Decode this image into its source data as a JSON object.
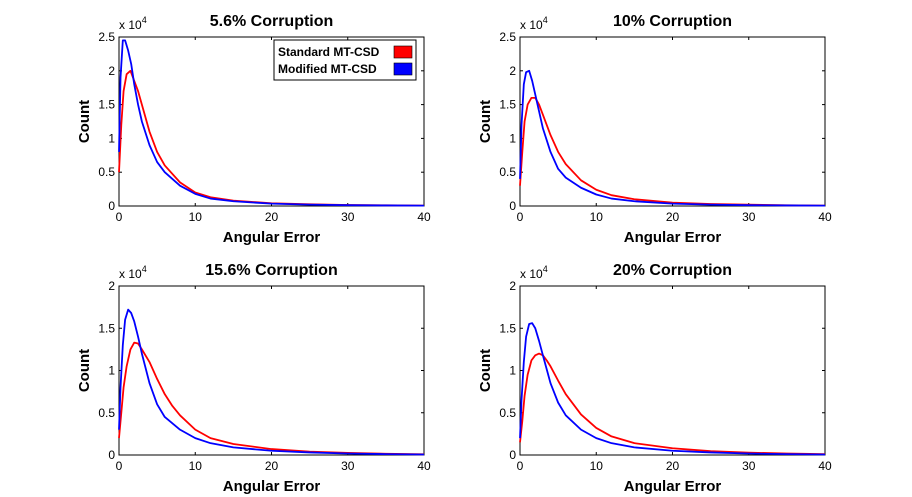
{
  "chart_data": [
    {
      "type": "line",
      "title": "5.6% Corruption",
      "xlabel": "Angular Error",
      "ylabel": "Count",
      "xlim": [
        0,
        40
      ],
      "ylim": [
        0,
        2.5
      ],
      "y_multiplier": "x 10",
      "y_multiplier_exp": "4",
      "xticks": [
        "0",
        "10",
        "20",
        "30",
        "40"
      ],
      "yticks": [
        "0",
        "0.5",
        "1",
        "1.5",
        "2",
        "2.5"
      ],
      "legend": {
        "position": "top-right"
      },
      "series": [
        {
          "name": "Standard MT-CSD",
          "color": "#ff0000",
          "x": [
            0,
            0.3,
            0.6,
            1.0,
            1.5,
            2.0,
            2.5,
            3.0,
            4.0,
            5.0,
            6.0,
            8.0,
            10.0,
            12.0,
            15.0,
            20.0,
            25.0,
            30.0,
            35.0,
            40.0
          ],
          "y": [
            0.5,
            1.2,
            1.7,
            1.95,
            2.0,
            1.85,
            1.7,
            1.5,
            1.1,
            0.8,
            0.6,
            0.35,
            0.2,
            0.13,
            0.08,
            0.04,
            0.025,
            0.015,
            0.01,
            0.005
          ]
        },
        {
          "name": "Modified MT-CSD",
          "color": "#0000ff",
          "x": [
            0,
            0.2,
            0.5,
            0.8,
            1.2,
            1.6,
            2.0,
            2.5,
            3.0,
            4.0,
            5.0,
            6.0,
            8.0,
            10.0,
            12.0,
            15.0,
            20.0,
            25.0,
            30.0,
            35.0,
            40.0
          ],
          "y": [
            0.8,
            1.9,
            2.45,
            2.45,
            2.3,
            2.1,
            1.8,
            1.5,
            1.25,
            0.9,
            0.65,
            0.5,
            0.3,
            0.18,
            0.11,
            0.07,
            0.035,
            0.02,
            0.012,
            0.008,
            0.005
          ]
        }
      ]
    },
    {
      "type": "line",
      "title": "10% Corruption",
      "xlabel": "Angular Error",
      "ylabel": "Count",
      "xlim": [
        0,
        40
      ],
      "ylim": [
        0,
        2.5
      ],
      "y_multiplier": "x 10",
      "y_multiplier_exp": "4",
      "xticks": [
        "0",
        "10",
        "20",
        "30",
        "40"
      ],
      "yticks": [
        "0",
        "0.5",
        "1",
        "1.5",
        "2",
        "2.5"
      ],
      "series": [
        {
          "name": "Standard MT-CSD",
          "color": "#ff0000",
          "x": [
            0,
            0.3,
            0.6,
            1.0,
            1.5,
            2.0,
            2.5,
            3.0,
            4.0,
            5.0,
            6.0,
            8.0,
            10.0,
            12.0,
            15.0,
            20.0,
            25.0,
            30.0,
            35.0,
            40.0
          ],
          "y": [
            0.3,
            0.8,
            1.25,
            1.5,
            1.6,
            1.6,
            1.5,
            1.35,
            1.05,
            0.8,
            0.62,
            0.38,
            0.24,
            0.16,
            0.1,
            0.05,
            0.03,
            0.02,
            0.01,
            0.005
          ]
        },
        {
          "name": "Modified MT-CSD",
          "color": "#0000ff",
          "x": [
            0,
            0.2,
            0.5,
            0.8,
            1.2,
            1.6,
            2.0,
            2.5,
            3.0,
            4.0,
            5.0,
            6.0,
            8.0,
            10.0,
            12.0,
            15.0,
            20.0,
            25.0,
            30.0,
            35.0,
            40.0
          ],
          "y": [
            0.4,
            1.2,
            1.8,
            1.98,
            2.0,
            1.85,
            1.65,
            1.4,
            1.15,
            0.8,
            0.55,
            0.42,
            0.27,
            0.17,
            0.11,
            0.07,
            0.035,
            0.02,
            0.012,
            0.008,
            0.005
          ]
        }
      ]
    },
    {
      "type": "line",
      "title": "15.6% Corruption",
      "xlabel": "Angular Error",
      "ylabel": "Count",
      "xlim": [
        0,
        40
      ],
      "ylim": [
        0,
        2
      ],
      "y_multiplier": "x 10",
      "y_multiplier_exp": "4",
      "xticks": [
        "0",
        "10",
        "20",
        "30",
        "40"
      ],
      "yticks": [
        "0",
        "0.5",
        "1",
        "1.5",
        "2"
      ],
      "series": [
        {
          "name": "Standard MT-CSD",
          "color": "#ff0000",
          "x": [
            0,
            0.3,
            0.6,
            1.0,
            1.5,
            2.0,
            2.5,
            3.0,
            4.0,
            5.0,
            6.0,
            7.0,
            8.0,
            10.0,
            12.0,
            15.0,
            20.0,
            25.0,
            30.0,
            35.0,
            40.0
          ],
          "y": [
            0.2,
            0.5,
            0.8,
            1.05,
            1.25,
            1.33,
            1.32,
            1.25,
            1.1,
            0.9,
            0.72,
            0.58,
            0.47,
            0.3,
            0.2,
            0.13,
            0.07,
            0.04,
            0.025,
            0.015,
            0.008
          ]
        },
        {
          "name": "Modified MT-CSD",
          "color": "#0000ff",
          "x": [
            0,
            0.2,
            0.5,
            0.8,
            1.2,
            1.6,
            2.0,
            2.5,
            3.0,
            4.0,
            5.0,
            6.0,
            8.0,
            10.0,
            12.0,
            15.0,
            20.0,
            25.0,
            30.0,
            35.0,
            40.0
          ],
          "y": [
            0.3,
            0.8,
            1.3,
            1.6,
            1.72,
            1.68,
            1.58,
            1.4,
            1.2,
            0.85,
            0.6,
            0.45,
            0.3,
            0.2,
            0.14,
            0.09,
            0.05,
            0.03,
            0.018,
            0.01,
            0.006
          ]
        }
      ]
    },
    {
      "type": "line",
      "title": "20% Corruption",
      "xlabel": "Angular Error",
      "ylabel": "Count",
      "xlim": [
        0,
        40
      ],
      "ylim": [
        0,
        2
      ],
      "y_multiplier": "x 10",
      "y_multiplier_exp": "4",
      "xticks": [
        "0",
        "10",
        "20",
        "30",
        "40"
      ],
      "yticks": [
        "0",
        "0.5",
        "1",
        "1.5",
        "2"
      ],
      "series": [
        {
          "name": "Standard MT-CSD",
          "color": "#ff0000",
          "x": [
            0,
            0.3,
            0.6,
            1.0,
            1.5,
            2.0,
            2.5,
            3.0,
            3.5,
            4.0,
            5.0,
            6.0,
            8.0,
            10.0,
            12.0,
            15.0,
            20.0,
            25.0,
            30.0,
            35.0,
            40.0
          ],
          "y": [
            0.15,
            0.4,
            0.7,
            0.95,
            1.12,
            1.18,
            1.2,
            1.18,
            1.12,
            1.05,
            0.88,
            0.72,
            0.48,
            0.32,
            0.22,
            0.14,
            0.08,
            0.045,
            0.028,
            0.017,
            0.01
          ]
        },
        {
          "name": "Modified MT-CSD",
          "color": "#0000ff",
          "x": [
            0,
            0.2,
            0.5,
            0.8,
            1.2,
            1.6,
            2.0,
            2.5,
            3.0,
            4.0,
            5.0,
            6.0,
            8.0,
            10.0,
            12.0,
            15.0,
            20.0,
            25.0,
            30.0,
            35.0,
            40.0
          ],
          "y": [
            0.2,
            0.65,
            1.1,
            1.4,
            1.55,
            1.56,
            1.5,
            1.35,
            1.18,
            0.85,
            0.62,
            0.47,
            0.3,
            0.2,
            0.14,
            0.09,
            0.05,
            0.03,
            0.018,
            0.01,
            0.006
          ]
        }
      ]
    }
  ]
}
